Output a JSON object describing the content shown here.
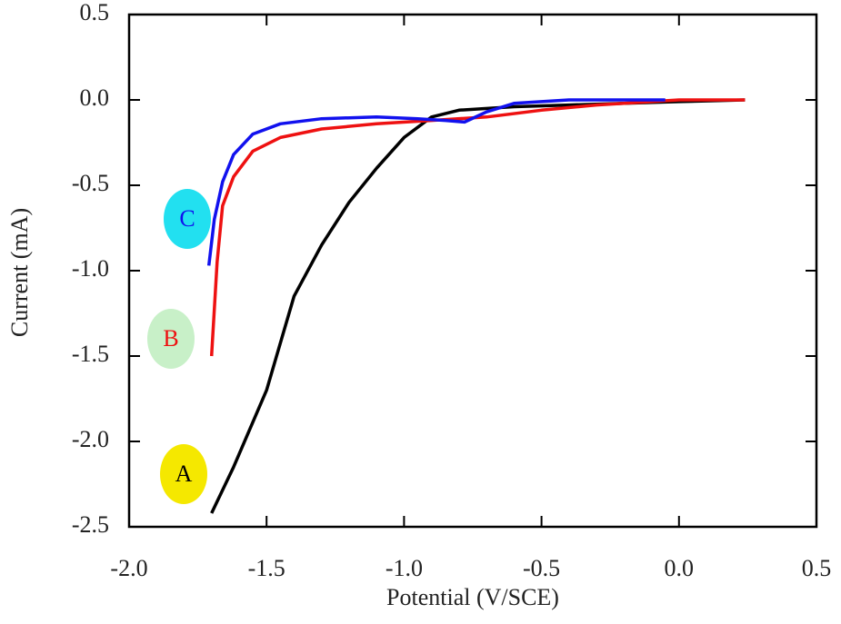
{
  "chart_data": {
    "type": "line",
    "x_label": "Potential (V/SCE)",
    "y_label": "Current (mA)",
    "xlim": [
      -2.0,
      0.5
    ],
    "ylim": [
      -2.5,
      0.5
    ],
    "xticks": [
      {
        "value": -2.0,
        "label": "-2.0"
      },
      -1.5,
      {
        "value": -1.0,
        "label": "-1.0"
      },
      -0.5,
      {
        "value": 0.0,
        "label": "0.0"
      },
      0.5
    ],
    "yticks": [
      -2.5,
      {
        "value": -2.0,
        "label": "-2.0"
      },
      -1.5,
      {
        "value": -1.0,
        "label": "-1.0"
      },
      -0.5,
      {
        "value": 0.0,
        "label": "0.0"
      },
      0.5
    ],
    "series": [
      {
        "name": "A",
        "color": "#000000",
        "label_background": "#f5e800",
        "x": [
          -1.7,
          -1.62,
          -1.5,
          -1.4,
          -1.3,
          -1.2,
          -1.1,
          -1.0,
          -0.9,
          -0.8,
          -0.6,
          -0.4,
          -0.2,
          0.0,
          0.24
        ],
        "values": [
          -2.42,
          -2.15,
          -1.7,
          -1.15,
          -0.85,
          -0.6,
          -0.4,
          -0.22,
          -0.1,
          -0.06,
          -0.04,
          -0.03,
          -0.02,
          -0.01,
          0.0
        ]
      },
      {
        "name": "B",
        "color": "#ee1111",
        "label_background": "#c8f0c8",
        "x": [
          -1.7,
          -1.68,
          -1.66,
          -1.62,
          -1.55,
          -1.45,
          -1.3,
          -1.1,
          -0.9,
          -0.7,
          -0.5,
          -0.3,
          0.0,
          0.24
        ],
        "values": [
          -1.5,
          -0.95,
          -0.62,
          -0.45,
          -0.3,
          -0.22,
          -0.17,
          -0.14,
          -0.12,
          -0.1,
          -0.06,
          -0.03,
          0.0,
          0.0
        ]
      },
      {
        "name": "C",
        "color": "#1111ee",
        "label_background": "#22e0f0",
        "x": [
          -1.71,
          -1.69,
          -1.66,
          -1.62,
          -1.55,
          -1.45,
          -1.3,
          -1.1,
          -0.95,
          -0.85,
          -0.78,
          -0.7,
          -0.6,
          -0.4,
          -0.05
        ],
        "values": [
          -0.97,
          -0.7,
          -0.48,
          -0.32,
          -0.2,
          -0.14,
          -0.11,
          -0.1,
          -0.11,
          -0.12,
          -0.13,
          -0.07,
          -0.02,
          0.0,
          0.0
        ]
      }
    ]
  }
}
